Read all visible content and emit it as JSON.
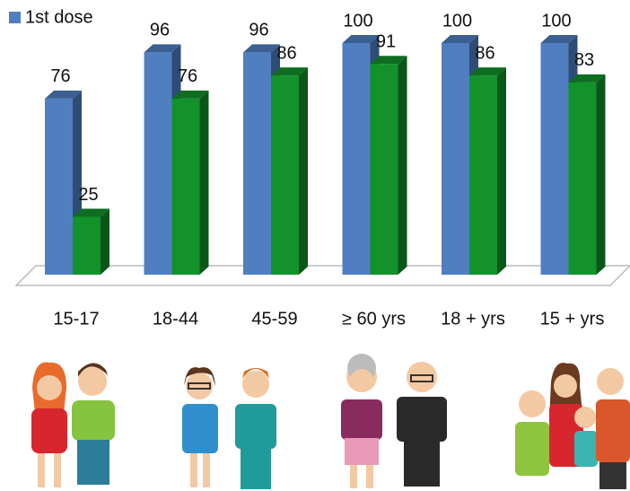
{
  "chart_data": {
    "type": "bar",
    "categories": [
      "15-17",
      "18-44",
      "45-59",
      "≥ 60 yrs",
      "18 + yrs",
      "15 + yrs"
    ],
    "series": [
      {
        "name": "1st dose",
        "color": "#4f7fc1",
        "values": [
          76,
          96,
          96,
          100,
          100,
          100
        ]
      },
      {
        "color": "#13912b",
        "values": [
          25,
          76,
          86,
          91,
          86,
          83
        ]
      }
    ]
  }
}
